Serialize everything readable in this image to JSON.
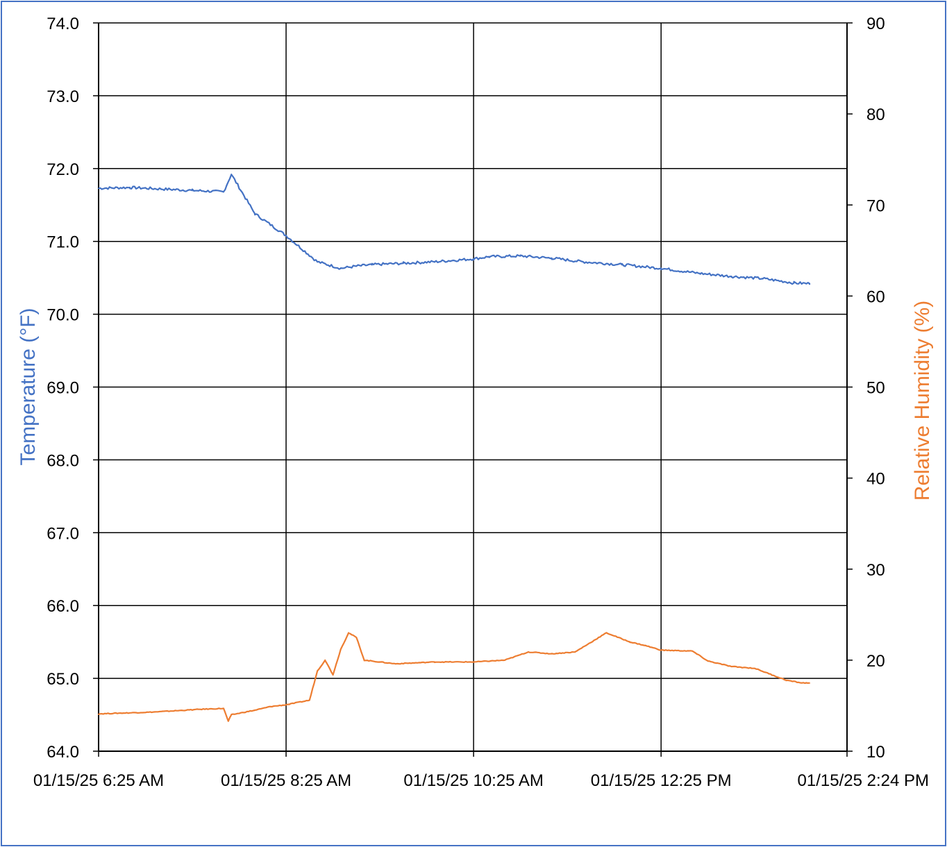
{
  "chart_data": {
    "type": "line",
    "title": "",
    "xlabel": "",
    "ylabel_left": "Temperature (°F)",
    "ylabel_right": "Relative Humidity (%)",
    "x_tick_labels": [
      "01/15/25 6:25 AM",
      "01/15/25 8:25 AM",
      "01/15/25 10:25 AM",
      "01/15/25 12:25 PM",
      "01/15/25 2:24 PM"
    ],
    "x_range": [
      "01/15/25 6:25 AM",
      "01/15/25 2:24 PM"
    ],
    "x_ticks": [
      "06:25",
      "08:25",
      "10:25",
      "12:25",
      "14:24"
    ],
    "ylim_left": [
      64.0,
      74.0
    ],
    "ylim_right": [
      10,
      90
    ],
    "left_ticks": [
      "64.0",
      "65.0",
      "66.0",
      "67.0",
      "68.0",
      "69.0",
      "70.0",
      "71.0",
      "72.0",
      "73.0",
      "74.0"
    ],
    "right_ticks": [
      "10",
      "20",
      "30",
      "40",
      "50",
      "60",
      "70",
      "80",
      "90"
    ],
    "grid": true,
    "legend": "none",
    "series": [
      {
        "axis": "left",
        "color": "#4472c4",
        "x": [
          "06:25",
          "06:45",
          "07:05",
          "07:25",
          "07:45",
          "07:45",
          "07:50",
          "08:05",
          "08:25",
          "08:45",
          "09:00",
          "09:10",
          "09:20",
          "09:40",
          "10:00",
          "10:25",
          "10:35",
          "10:55",
          "11:15",
          "11:35",
          "12:00",
          "12:25",
          "12:50",
          "13:10",
          "13:30",
          "13:50",
          "14:00"
        ],
        "values": [
          71.73,
          71.74,
          71.72,
          71.7,
          71.68,
          71.68,
          71.92,
          71.38,
          71.08,
          70.72,
          70.63,
          70.66,
          70.68,
          70.7,
          70.72,
          70.76,
          70.79,
          70.8,
          70.77,
          70.72,
          70.68,
          70.63,
          70.56,
          70.52,
          70.49,
          70.43,
          70.42
        ]
      },
      {
        "axis": "right",
        "color": "#ed7d31",
        "x": [
          "06:25",
          "07:00",
          "07:30",
          "07:45",
          "07:48",
          "07:50",
          "08:05",
          "08:15",
          "08:25",
          "08:40",
          "08:45",
          "08:50",
          "08:55",
          "09:00",
          "09:05",
          "09:10",
          "09:15",
          "09:25",
          "09:35",
          "10:00",
          "10:25",
          "10:45",
          "11:00",
          "11:15",
          "11:30",
          "11:50",
          "12:05",
          "12:15",
          "12:25",
          "12:45",
          "12:55",
          "13:10",
          "13:25",
          "13:45",
          "13:55",
          "14:00"
        ],
        "values": [
          14.1,
          14.3,
          14.6,
          14.7,
          13.3,
          14.0,
          14.5,
          14.9,
          15.1,
          15.6,
          18.8,
          20.0,
          18.4,
          21.2,
          23.0,
          22.5,
          20.0,
          19.8,
          19.6,
          19.8,
          19.8,
          20.0,
          20.9,
          20.7,
          20.9,
          23.0,
          22.0,
          21.6,
          21.1,
          21.0,
          19.9,
          19.3,
          19.1,
          17.8,
          17.5,
          17.5
        ]
      }
    ]
  }
}
